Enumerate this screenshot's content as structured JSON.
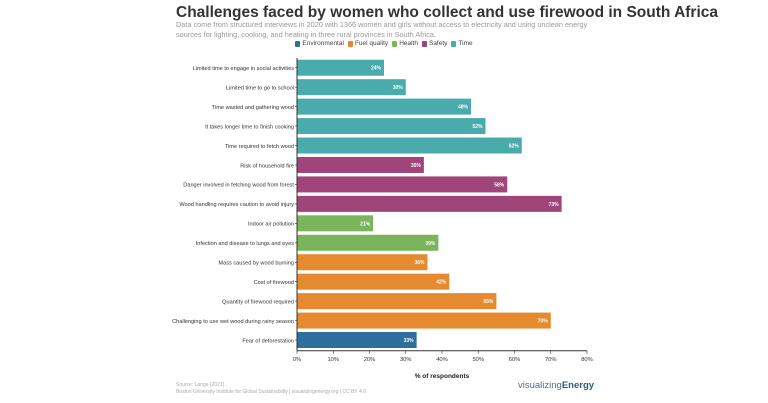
{
  "chart_data": {
    "type": "bar",
    "orientation": "horizontal",
    "title": "Challenges faced by women who collect and use firewood in South Africa",
    "subtitle": "Data come from structured interviews in 2020 with 1366 women and girls without access to electricity and using unclean energy sources for lighting, cooking, and heating in three rural provinces in South Africa.",
    "xlabel": "% of respondents",
    "ylabel": "",
    "xlim": [
      0,
      80
    ],
    "xticks": [
      "0%",
      "10%",
      "20%",
      "30%",
      "40%",
      "50%",
      "60%",
      "70%",
      "80%"
    ],
    "grid": false,
    "legend_placement": "top",
    "legend": [
      {
        "name": "Environmental",
        "color": "#2e6f9e"
      },
      {
        "name": "Fuel quality",
        "color": "#e58a2f"
      },
      {
        "name": "Health",
        "color": "#7ab55c"
      },
      {
        "name": "Safety",
        "color": "#a0457a"
      },
      {
        "name": "Time",
        "color": "#4aabad"
      }
    ],
    "categories": [
      "Limited time to engage in social activities",
      "Limited time to go to school",
      "Time wasted and gathering wood",
      "It takes longer time to finish cooking",
      "Time required to fetch wood",
      "Risk of household fire",
      "Danger involved in fetching wood from forest",
      "Wood handling requires caution to avoid injury",
      "Indoor air pollution",
      "Infection and disease to lungs and eyes",
      "Mass caused by wood burning",
      "Cost of firewood",
      "Quantity of firewood required",
      "Challenging to use wet wood during rainy season",
      "Fear of deforestation"
    ],
    "groups": [
      "Time",
      "Time",
      "Time",
      "Time",
      "Time",
      "Safety",
      "Safety",
      "Safety",
      "Health",
      "Health",
      "Fuel quality",
      "Fuel quality",
      "Fuel quality",
      "Fuel quality",
      "Environmental"
    ],
    "values": [
      24,
      30,
      48,
      52,
      62,
      35,
      58,
      73,
      21,
      39,
      36,
      42,
      55,
      70,
      33
    ],
    "data_labels": [
      "24%",
      "30%",
      "48%",
      "52%",
      "62%",
      "35%",
      "58%",
      "73%",
      "21%",
      "39%",
      "36%",
      "42%",
      "55%",
      "70%",
      "33%"
    ]
  },
  "footer": {
    "source": "Source: Lange (2021)",
    "credit": "Boston University Institute for Global Sustainability | visualizingenergy.org | CC BY 4.0",
    "logo_light": "visualizing",
    "logo_bold": "Energy"
  }
}
